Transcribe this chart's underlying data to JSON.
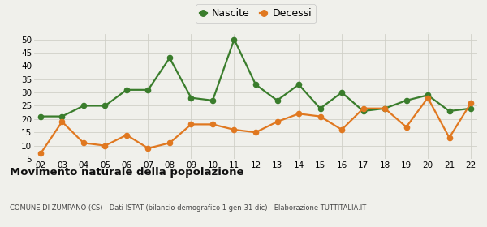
{
  "years": [
    "02",
    "03",
    "04",
    "05",
    "06",
    "07",
    "08",
    "09",
    "10",
    "11",
    "12",
    "13",
    "14",
    "15",
    "16",
    "17",
    "18",
    "19",
    "20",
    "21",
    "22"
  ],
  "nascite": [
    21,
    21,
    25,
    25,
    31,
    31,
    43,
    28,
    27,
    50,
    33,
    27,
    33,
    24,
    30,
    23,
    24,
    27,
    29,
    23,
    24
  ],
  "decessi": [
    7,
    19,
    11,
    10,
    14,
    9,
    11,
    18,
    18,
    16,
    15,
    19,
    22,
    21,
    16,
    24,
    24,
    17,
    28,
    13,
    26
  ],
  "nascite_color": "#3a7d2c",
  "decessi_color": "#e07820",
  "bg_color": "#f0f0eb",
  "grid_color": "#d0d0c8",
  "ylim": [
    5,
    52
  ],
  "yticks": [
    5,
    10,
    15,
    20,
    25,
    30,
    35,
    40,
    45,
    50
  ],
  "title": "Movimento naturale della popolazione",
  "subtitle": "COMUNE DI ZUMPANO (CS) - Dati ISTAT (bilancio demografico 1 gen-31 dic) - Elaborazione TUTTITALIA.IT",
  "legend_labels": [
    "Nascite",
    "Decessi"
  ],
  "marker_size": 4.5,
  "line_width": 1.6
}
